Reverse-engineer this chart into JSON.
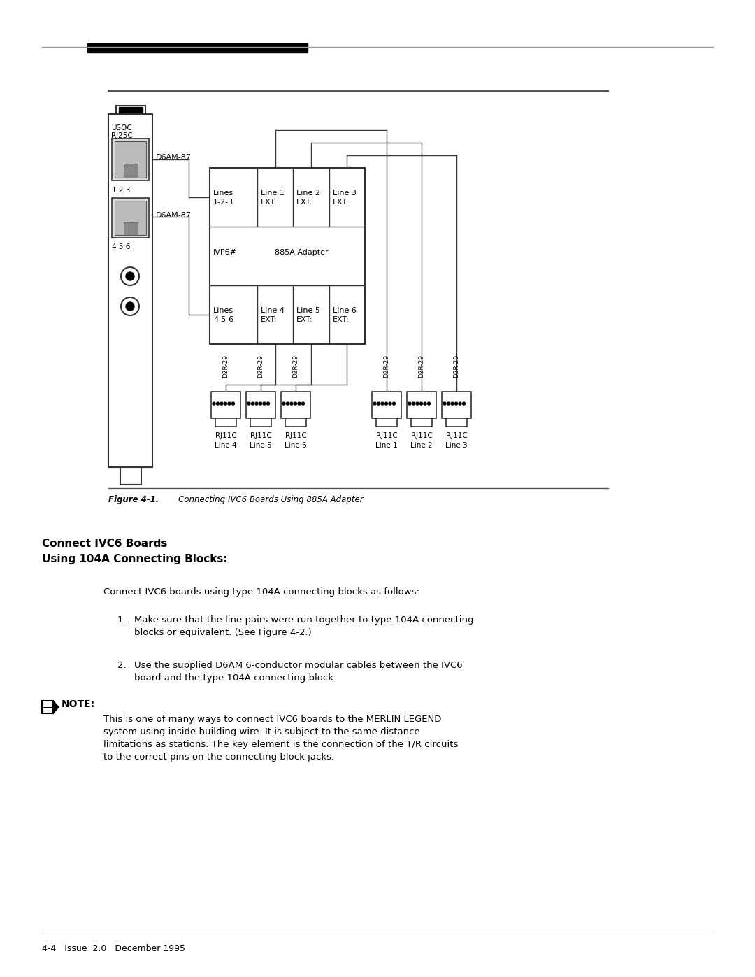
{
  "bg_color": "#ffffff",
  "figure_caption_label": "Figure 4-1.",
  "figure_caption_text": "Connecting IVC6 Boards Using 885A Adapter",
  "section_title_line1": "Connect IVC6 Boards",
  "section_title_line2": "Using 104A Connecting Blocks:",
  "intro_text": "Connect IVC6 boards using type 104A connecting blocks as follows:",
  "item1_num": "1.",
  "item1_line1": "Make sure that the line pairs were run together to type 104A connecting",
  "item1_line2": "blocks or equivalent. (See Figure 4-2.)",
  "item2_num": "2.",
  "item2_line1": "Use the supplied D6AM 6-conductor modular cables between the IVC6",
  "item2_line2": "board and the type 104A connecting block.",
  "note_label": "NOTE:",
  "note_line1": "This is one of many ways to connect IVC6 boards to the MERLIN LEGEND",
  "note_line2": "system using inside building wire. It is subject to the same distance",
  "note_line3": "limitations as stations. The key element is the connection of the T/R circuits",
  "note_line4": "to the correct pins on the connecting block jacks.",
  "footer_text": "4-4   Issue  2.0   December 1995"
}
